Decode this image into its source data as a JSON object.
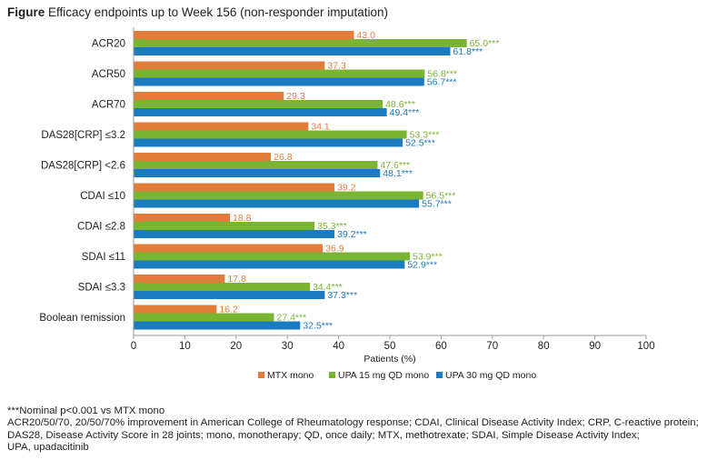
{
  "figure": {
    "label": "Figure",
    "title": "Efficacy endpoints up to Week 156 (non-responder imputation)"
  },
  "chart_data": {
    "type": "bar",
    "orientation": "horizontal",
    "categories": [
      "ACR20",
      "ACR50",
      "ACR70",
      "DAS28[CRP] ≤3.2",
      "DAS28[CRP] <2.6",
      "CDAI ≤10",
      "CDAI ≤2.8",
      "SDAI ≤11",
      "SDAI ≤3.3",
      "Boolean remission"
    ],
    "series": [
      {
        "name": "MTX mono",
        "color": "#e27c3a",
        "values": [
          43.0,
          37.3,
          29.3,
          34.1,
          26.8,
          39.2,
          18.8,
          36.9,
          17.8,
          16.2
        ],
        "labels": [
          "43.0",
          "37.3",
          "29.3",
          "34.1",
          "26.8",
          "39.2",
          "18.8",
          "36.9",
          "17.8",
          "16.2"
        ]
      },
      {
        "name": "UPA 15 mg QD mono",
        "color": "#7ab531",
        "values": [
          65.0,
          56.8,
          48.6,
          53.3,
          47.6,
          56.5,
          35.3,
          53.9,
          34.4,
          27.4
        ],
        "labels": [
          "65.0***",
          "56.8***",
          "48.6***",
          "53.3***",
          "47.6***",
          "56.5***",
          "35.3***",
          "53.9***",
          "34.4***",
          "27.4***"
        ]
      },
      {
        "name": "UPA 30 mg QD mono",
        "color": "#1a7bbf",
        "values": [
          61.8,
          56.7,
          49.4,
          52.5,
          48.1,
          55.7,
          39.2,
          52.9,
          37.3,
          32.5
        ],
        "labels": [
          "61.8***",
          "56.7***",
          "49.4***",
          "52.5***",
          "48.1***",
          "55.7***",
          "39.2***",
          "52.9***",
          "37.3***",
          "32.5***"
        ]
      }
    ],
    "xlabel": "Patients (%)",
    "xlim": [
      0,
      100
    ],
    "xticks": [
      0,
      10,
      20,
      30,
      40,
      50,
      60,
      70,
      80,
      90,
      100
    ],
    "grid": false,
    "legend_position": "bottom"
  },
  "footnotes": [
    "***Nominal p<0.001 vs MTX mono",
    "ACR20/50/70, 20/50/70% improvement in American College of Rheumatology response; CDAI, Clinical Disease Activity Index; CRP, C-reactive protein;",
    "DAS28, Disease Activity Score in 28 joints; mono, monotherapy; QD, once daily; MTX, methotrexate; SDAI, Simple Disease Activity Index;",
    "UPA, upadacitinib"
  ]
}
